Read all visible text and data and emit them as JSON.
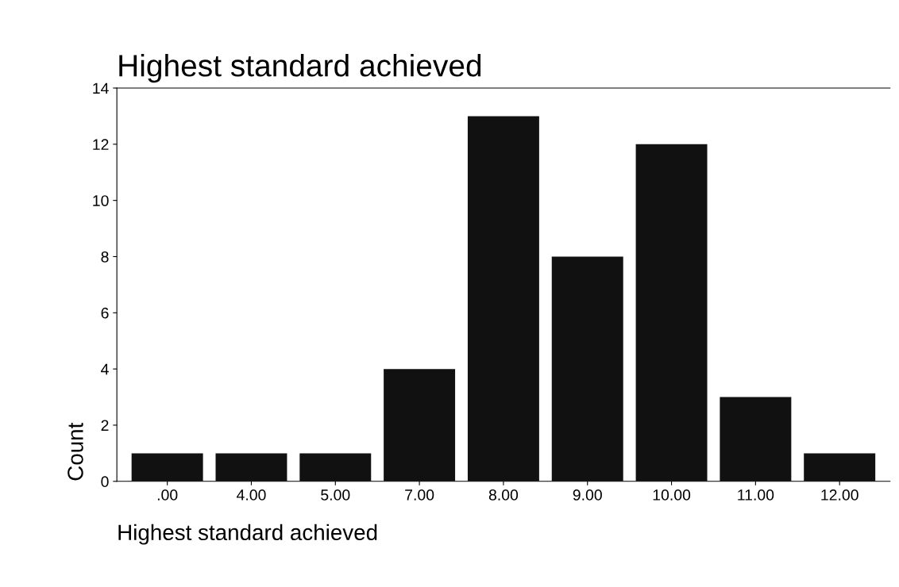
{
  "chart_data": {
    "type": "bar",
    "title": "Highest standard achieved",
    "xlabel": "Highest standard achieved",
    "ylabel": "Count",
    "categories": [
      ".00",
      "4.00",
      "5.00",
      "7.00",
      "8.00",
      "9.00",
      "10.00",
      "11.00",
      "12.00"
    ],
    "values": [
      1,
      1,
      1,
      4,
      13,
      8,
      12,
      3,
      1
    ],
    "color": "#111111",
    "ylim": [
      0,
      14
    ],
    "yticks": [
      0,
      2,
      4,
      6,
      8,
      10,
      12,
      14
    ],
    "grid": false
  }
}
